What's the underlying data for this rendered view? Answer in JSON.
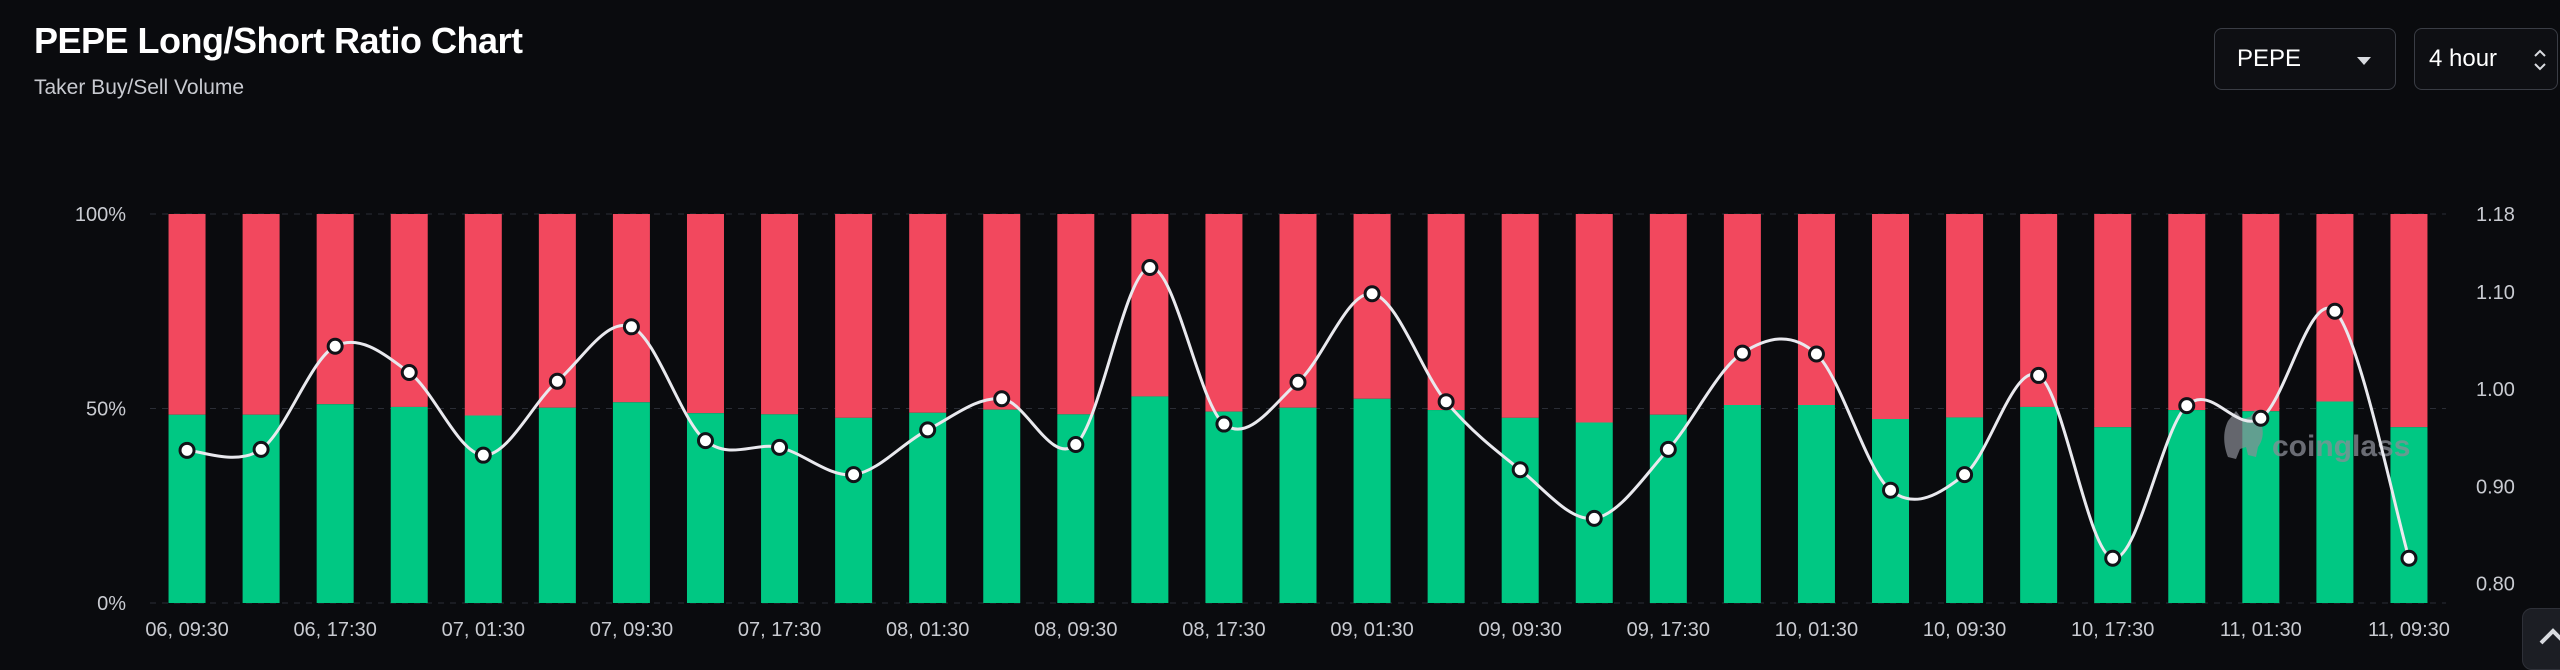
{
  "header": {
    "title": "PEPE Long/Short Ratio Chart",
    "subtitle": "Taker Buy/Sell Volume"
  },
  "controls": {
    "coin_select": "PEPE",
    "interval_select": "4 hour"
  },
  "watermark": "coinglass",
  "colors": {
    "long": "#00c883",
    "short": "#f2485e",
    "ratio_line": "#e9e9ee",
    "background": "#0a0b0e"
  },
  "chart_data": {
    "type": "bar",
    "stacked": true,
    "title": "PEPE Long/Short Ratio Chart",
    "subtitle": "Taker Buy/Sell Volume",
    "x_tick_labels": [
      "06, 09:30",
      "06, 17:30",
      "07, 01:30",
      "07, 09:30",
      "07, 17:30",
      "08, 01:30",
      "08, 09:30",
      "08, 17:30",
      "09, 01:30",
      "09, 09:30",
      "09, 17:30",
      "10, 01:30",
      "10, 09:30",
      "10, 17:30",
      "11, 01:30",
      "11, 09:30"
    ],
    "left_axis": {
      "ticks": [
        "0%",
        "50%",
        "100%"
      ],
      "ylim": [
        0,
        100
      ]
    },
    "right_axis": {
      "ticks": [
        "0.80",
        "0.90",
        "1.00",
        "1.10",
        "1.18"
      ],
      "ylim": [
        0.78,
        1.18
      ]
    },
    "grid": true,
    "series": [
      {
        "axis": "left",
        "values": [
          48.4,
          48.4,
          51.1,
          50.4,
          48.2,
          50.2,
          51.6,
          48.8,
          48.5,
          47.6,
          48.9,
          49.7,
          48.5,
          53.1,
          49.2,
          50.2,
          52.5,
          49.6,
          47.6,
          46.4,
          48.4,
          50.9,
          50.9,
          47.3,
          47.7,
          50.4,
          45.2,
          49.6,
          49.3,
          51.8,
          45.2
        ]
      },
      {
        "axis": "left",
        "values": [
          51.6,
          51.6,
          48.9,
          49.6,
          51.8,
          49.8,
          48.4,
          51.2,
          51.5,
          52.4,
          51.1,
          50.3,
          51.5,
          46.9,
          50.8,
          49.8,
          47.5,
          50.4,
          52.4,
          53.6,
          51.6,
          49.1,
          49.1,
          52.7,
          52.3,
          49.6,
          54.8,
          50.4,
          50.7,
          48.2,
          54.8
        ]
      },
      {
        "axis": "right",
        "type": "line",
        "values": [
          0.937,
          0.938,
          1.044,
          1.017,
          0.932,
          1.008,
          1.064,
          0.947,
          0.94,
          0.912,
          0.958,
          0.99,
          0.943,
          1.125,
          0.964,
          1.007,
          1.098,
          0.987,
          0.917,
          0.867,
          0.938,
          1.037,
          1.036,
          0.896,
          0.912,
          1.014,
          0.826,
          0.983,
          0.97,
          1.08,
          0.826
        ]
      }
    ]
  }
}
